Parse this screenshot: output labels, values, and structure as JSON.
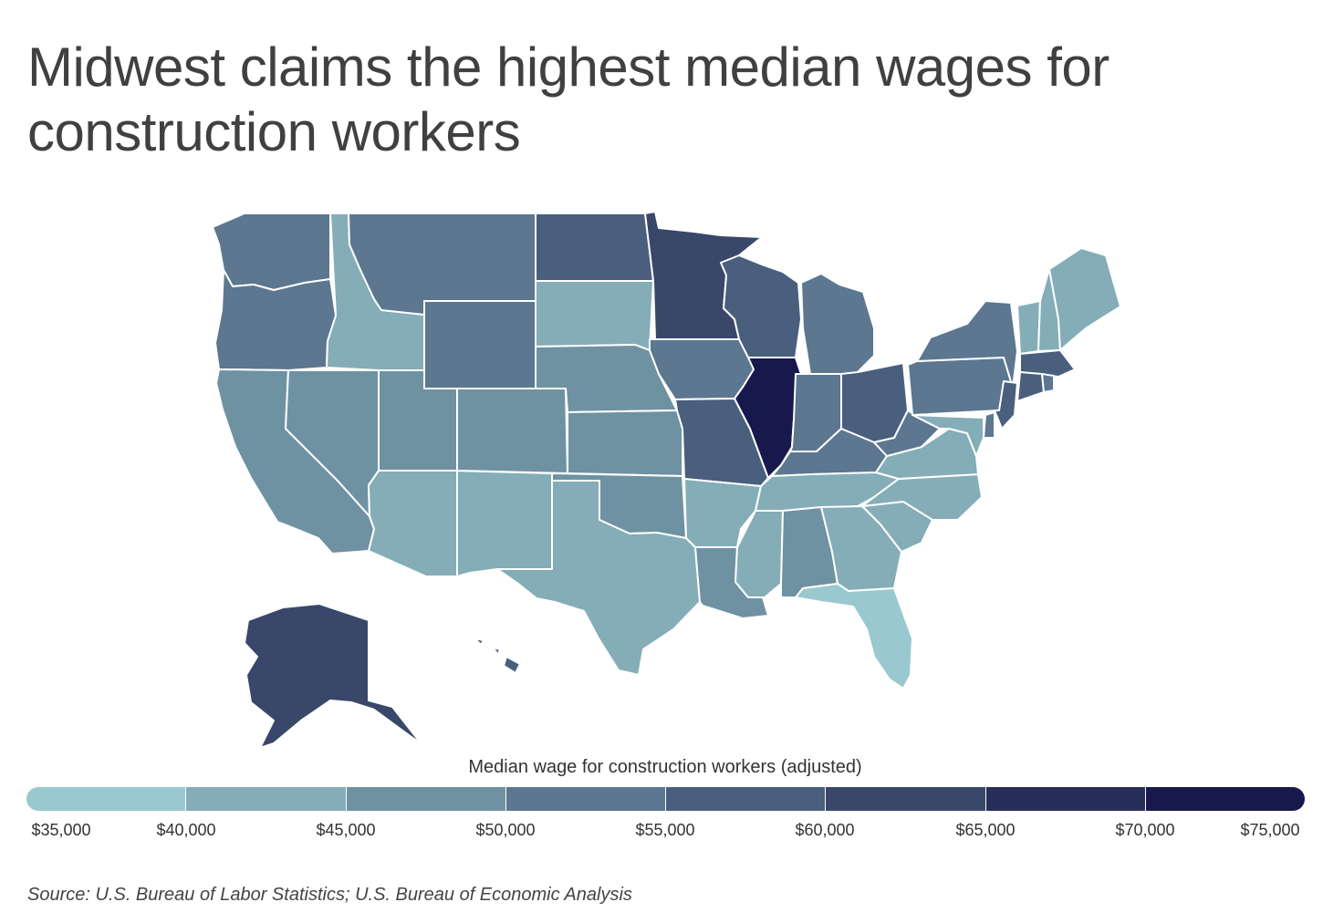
{
  "title": "Midwest claims the highest median wages for construction workers",
  "source": "Source: U.S. Bureau of Labor Statistics; U.S. Bureau of Economic Analysis",
  "legend": {
    "title": "Median wage for construction workers (adjusted)",
    "ticks": [
      "$35,000",
      "$40,000",
      "$45,000",
      "$50,000",
      "$55,000",
      "$60,000",
      "$65,000",
      "$70,000",
      "$75,000"
    ],
    "bins": [
      {
        "range": [
          35000,
          40000
        ],
        "color": "#99c9ce"
      },
      {
        "range": [
          40000,
          45000
        ],
        "color": "#84adb8"
      },
      {
        "range": [
          45000,
          50000
        ],
        "color": "#6f92a3"
      },
      {
        "range": [
          50000,
          55000
        ],
        "color": "#5c778f"
      },
      {
        "range": [
          55000,
          60000
        ],
        "color": "#4a5f7d"
      },
      {
        "range": [
          60000,
          65000
        ],
        "color": "#39476a"
      },
      {
        "range": [
          65000,
          70000
        ],
        "color": "#282e5a"
      },
      {
        "range": [
          70000,
          75000
        ],
        "color": "#17184b"
      }
    ]
  },
  "map": {
    "type": "choropleth",
    "region": "United States",
    "state_bins": {
      "WA": 3,
      "OR": 3,
      "CA": 2,
      "NV": 2,
      "ID": 1,
      "MT": 3,
      "WY": 3,
      "UT": 2,
      "AZ": 1,
      "NM": 1,
      "CO": 2,
      "ND": 4,
      "SD": 1,
      "NE": 2,
      "KS": 2,
      "OK": 2,
      "TX": 1,
      "MN": 5,
      "IA": 3,
      "MO": 4,
      "AR": 1,
      "LA": 2,
      "WI": 4,
      "IL": 7,
      "MI": 3,
      "IN": 3,
      "OH": 4,
      "KY": 3,
      "TN": 1,
      "MS": 1,
      "AL": 2,
      "GA": 1,
      "FL": 0,
      "SC": 1,
      "NC": 1,
      "VA": 1,
      "WV": 3,
      "PA": 3,
      "NY": 3,
      "VT": 1,
      "NH": 1,
      "ME": 1,
      "MA": 4,
      "CT": 4,
      "RI": 3,
      "NJ": 4,
      "DE": 3,
      "MD": 1,
      "AK": 5,
      "HI": 4
    }
  }
}
